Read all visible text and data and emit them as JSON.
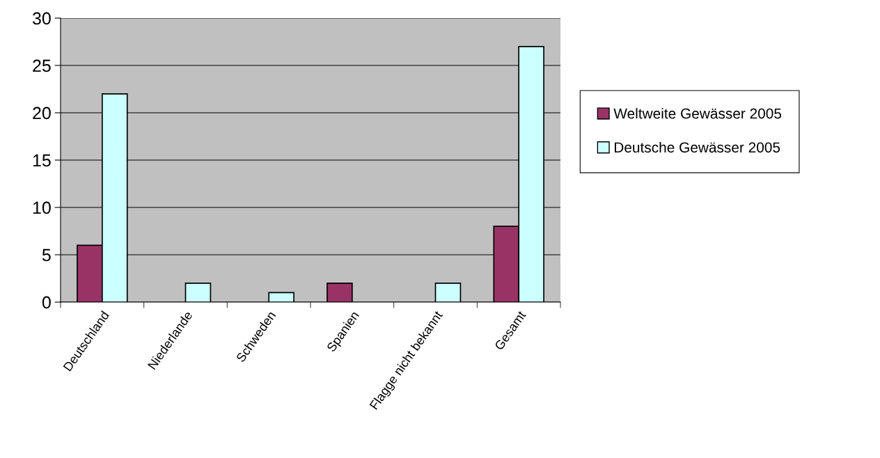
{
  "chart_data": {
    "type": "bar",
    "categories": [
      "Deutschland",
      "Niederlande",
      "Schweden",
      "Spanien",
      "Flagge nicht bekannt",
      "Gesamt"
    ],
    "series": [
      {
        "name": "Weltweite Gewässer 2005",
        "color": "#993366",
        "values": [
          6,
          null,
          null,
          2,
          null,
          8
        ]
      },
      {
        "name": "Deutsche Gewässer 2005",
        "color": "#ccffff",
        "values": [
          22,
          2,
          1,
          null,
          2,
          27
        ]
      }
    ],
    "ylim": [
      0,
      30
    ],
    "yticks": [
      0,
      5,
      10,
      15,
      20,
      25,
      30
    ],
    "grid": "y",
    "legend": "right"
  }
}
